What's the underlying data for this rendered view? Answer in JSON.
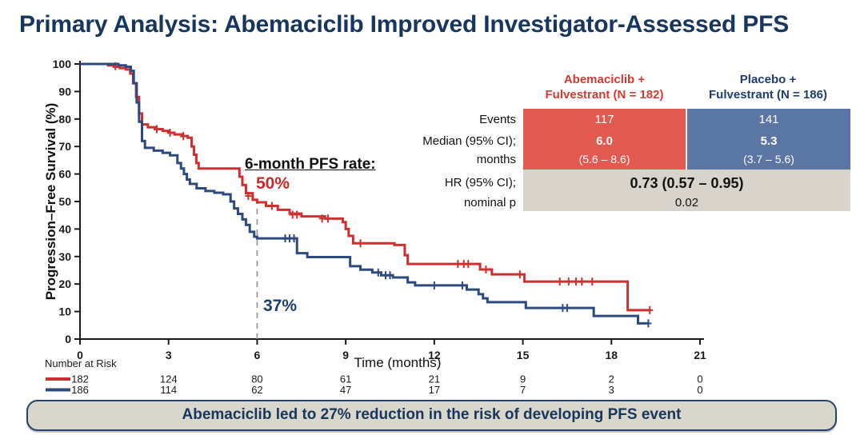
{
  "slide": {
    "title": "Primary Analysis: Abemaciclib Improved Investigator-Assessed PFS",
    "footer": "Abemaciclib led to 27% reduction in the risk of developing PFS event"
  },
  "colors": {
    "title_navy": "#17365D",
    "abemaciclib_red": "#CE2F2F",
    "placebo_navy": "#2D4A7D",
    "table_red_bg": "#E2594F",
    "table_blue_bg": "#5C76A3",
    "table_gray_bg": "#D8D4CB",
    "banner_bg": "#D9D6CB",
    "reference_line_gray": "#9A9A9A"
  },
  "stats_table": {
    "col_headers": [
      {
        "line1": "Abemaciclib +",
        "line2": "Fulvestrant (N = 182)"
      },
      {
        "line1": "Placebo +",
        "line2": "Fulvestrant (N = 186)"
      }
    ],
    "row_labels": {
      "events": "Events",
      "median_line1": "Median (95% CI);",
      "median_line2": "months",
      "hr_line1": "HR (95% CI);",
      "hr_line2": "nominal p"
    },
    "events": [
      "117",
      "141"
    ],
    "median": [
      {
        "value": "6.0",
        "ci": "(5.6 – 8.6)"
      },
      {
        "value": "5.3",
        "ci": "(3.7 – 5.6)"
      }
    ],
    "hr": "0.73 (0.57 – 0.95)",
    "nominal_p": "0.02"
  },
  "annotation": {
    "label": "6-month PFS rate:",
    "abemaciclib_rate": "50%",
    "placebo_rate": "37%"
  },
  "risk_table": {
    "title": "Number at Risk",
    "months": [
      0,
      3,
      6,
      9,
      12,
      15,
      18,
      21
    ],
    "rows": [
      {
        "name": "abemaciclib",
        "color": "#CE2F2F",
        "values": [
          182,
          124,
          80,
          61,
          21,
          9,
          2,
          0
        ]
      },
      {
        "name": "placebo",
        "color": "#2D4A7D",
        "values": [
          186,
          114,
          62,
          47,
          17,
          7,
          3,
          0
        ]
      }
    ]
  },
  "chart_data": {
    "type": "line",
    "subtype": "kaplan-meier-step",
    "title": "",
    "xlabel": "Time (months)",
    "ylabel": "Progression–Free Survival (%)",
    "xlim": [
      0,
      21
    ],
    "ylim": [
      0,
      100
    ],
    "x_ticks": [
      0,
      3,
      6,
      9,
      12,
      15,
      18,
      21
    ],
    "y_ticks": [
      0,
      10,
      20,
      30,
      40,
      50,
      60,
      70,
      80,
      90,
      100
    ],
    "grid": false,
    "dashed_reference_x": 6,
    "six_month_rates": {
      "abemaciclib": 50,
      "placebo": 37
    },
    "series": [
      {
        "name": "Abemaciclib + Fulvestrant",
        "key": "abemaciclib",
        "color": "#CE2F2F",
        "steps": [
          [
            0,
            100
          ],
          [
            0.75,
            100
          ],
          [
            0.95,
            99.5
          ],
          [
            1.15,
            99
          ],
          [
            1.35,
            98.5
          ],
          [
            1.55,
            98
          ],
          [
            1.7,
            96.5
          ],
          [
            1.8,
            93
          ],
          [
            1.9,
            88
          ],
          [
            2.0,
            82
          ],
          [
            2.1,
            78
          ],
          [
            2.3,
            77
          ],
          [
            2.55,
            76.3
          ],
          [
            2.8,
            75.7
          ],
          [
            3.0,
            75
          ],
          [
            3.2,
            74.4
          ],
          [
            3.45,
            73.8
          ],
          [
            3.65,
            73.2
          ],
          [
            3.78,
            70
          ],
          [
            3.86,
            67
          ],
          [
            3.94,
            64
          ],
          [
            4.02,
            62
          ],
          [
            5.3,
            62
          ],
          [
            5.4,
            59
          ],
          [
            5.5,
            56
          ],
          [
            5.62,
            53
          ],
          [
            5.85,
            50.6
          ],
          [
            6.0,
            49.7
          ],
          [
            6.3,
            48.4
          ],
          [
            6.7,
            47
          ],
          [
            7.1,
            45.6
          ],
          [
            7.5,
            44.6
          ],
          [
            8.3,
            43.8
          ],
          [
            8.9,
            42.5
          ],
          [
            9.0,
            40
          ],
          [
            9.1,
            37.5
          ],
          [
            9.25,
            34.8
          ],
          [
            10.65,
            34.2
          ],
          [
            11.0,
            30.5
          ],
          [
            11.1,
            27.3
          ],
          [
            13.55,
            25.3
          ],
          [
            13.95,
            23.5
          ],
          [
            15.05,
            20.9
          ],
          [
            18.55,
            10.5
          ],
          [
            19.3,
            10.5
          ]
        ],
        "censors": [
          [
            1.2,
            99.2
          ],
          [
            2.6,
            76.3
          ],
          [
            3.05,
            75
          ],
          [
            3.5,
            73.8
          ],
          [
            5.7,
            52
          ],
          [
            6.5,
            48.4
          ],
          [
            7.2,
            45.2
          ],
          [
            7.35,
            45.2
          ],
          [
            8.2,
            43.8
          ],
          [
            8.4,
            43.8
          ],
          [
            9.5,
            34.8
          ],
          [
            12.8,
            27.3
          ],
          [
            13.0,
            27.3
          ],
          [
            13.15,
            27.3
          ],
          [
            13.75,
            25.3
          ],
          [
            14.9,
            23.5
          ],
          [
            16.25,
            20.9
          ],
          [
            16.55,
            20.9
          ],
          [
            16.8,
            20.9
          ],
          [
            17.0,
            20.9
          ],
          [
            17.35,
            20.9
          ],
          [
            19.3,
            10.5
          ]
        ]
      },
      {
        "name": "Placebo + Fulvestrant",
        "key": "placebo",
        "color": "#2D4A7D",
        "steps": [
          [
            0,
            100
          ],
          [
            1.3,
            99.5
          ],
          [
            1.55,
            99
          ],
          [
            1.72,
            97.5
          ],
          [
            1.82,
            93
          ],
          [
            1.92,
            86
          ],
          [
            2.0,
            79
          ],
          [
            2.1,
            72
          ],
          [
            2.2,
            69.5
          ],
          [
            2.5,
            68.5
          ],
          [
            2.8,
            67.7
          ],
          [
            3.05,
            66.8
          ],
          [
            3.3,
            64
          ],
          [
            3.42,
            62
          ],
          [
            3.52,
            60
          ],
          [
            3.62,
            58
          ],
          [
            3.72,
            56.4
          ],
          [
            3.95,
            54.8
          ],
          [
            4.25,
            53.8
          ],
          [
            4.55,
            53.2
          ],
          [
            4.85,
            52.6
          ],
          [
            5.1,
            50
          ],
          [
            5.22,
            47.5
          ],
          [
            5.35,
            45.5
          ],
          [
            5.5,
            43.5
          ],
          [
            5.62,
            41.5
          ],
          [
            5.75,
            39
          ],
          [
            5.9,
            37.2
          ],
          [
            6.0,
            36.6
          ],
          [
            7.35,
            31.2
          ],
          [
            7.7,
            29.8
          ],
          [
            9.15,
            26.5
          ],
          [
            9.5,
            25.2
          ],
          [
            9.9,
            24.2
          ],
          [
            10.2,
            23.2
          ],
          [
            10.6,
            22.4
          ],
          [
            11.1,
            20.6
          ],
          [
            11.35,
            19.5
          ],
          [
            13.1,
            18
          ],
          [
            13.5,
            16.3
          ],
          [
            13.65,
            14.8
          ],
          [
            13.8,
            13.4
          ],
          [
            15.1,
            11.3
          ],
          [
            17.4,
            8.4
          ],
          [
            18.9,
            5.7
          ],
          [
            19.25,
            5.7
          ]
        ],
        "censors": [
          [
            6.95,
            36.6
          ],
          [
            7.1,
            36.6
          ],
          [
            7.25,
            36.6
          ],
          [
            10.1,
            24.2
          ],
          [
            10.35,
            23.2
          ],
          [
            10.5,
            23.2
          ],
          [
            12.0,
            19.5
          ],
          [
            12.95,
            19.5
          ],
          [
            16.35,
            11.3
          ],
          [
            16.5,
            11.3
          ],
          [
            19.25,
            5.7
          ]
        ]
      }
    ]
  }
}
